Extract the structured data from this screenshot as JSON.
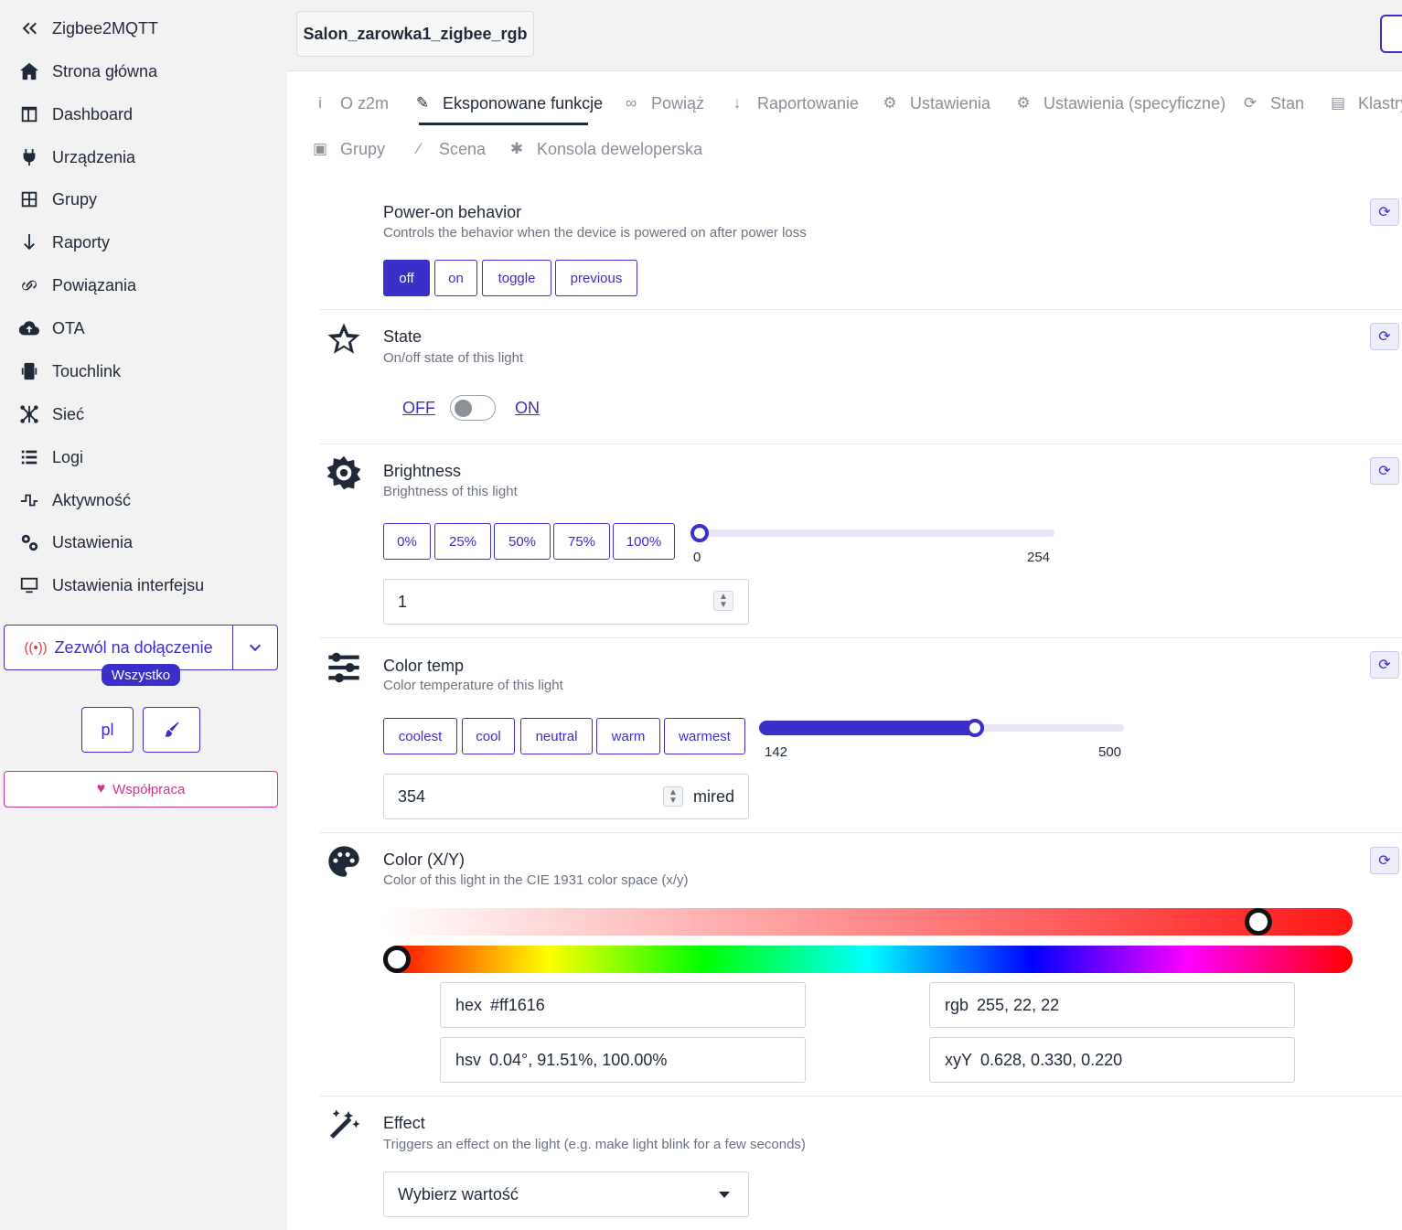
{
  "sidebar": {
    "brand": "Zigbee2MQTT",
    "items": [
      {
        "label": "Strona główna",
        "icon": "home-icon"
      },
      {
        "label": "Dashboard",
        "icon": "dashboard-icon"
      },
      {
        "label": "Urządzenia",
        "icon": "plug-icon"
      },
      {
        "label": "Grupy",
        "icon": "grid-icon"
      },
      {
        "label": "Raporty",
        "icon": "arrow-down-icon"
      },
      {
        "label": "Powiązania",
        "icon": "link-icon"
      },
      {
        "label": "OTA",
        "icon": "cloud-upload-icon"
      },
      {
        "label": "Touchlink",
        "icon": "mobile-signal-icon"
      },
      {
        "label": "Sieć",
        "icon": "network-icon"
      },
      {
        "label": "Logi",
        "icon": "list-icon"
      },
      {
        "label": "Aktywność",
        "icon": "pulse-icon"
      },
      {
        "label": "Ustawienia",
        "icon": "gears-icon"
      },
      {
        "label": "Ustawienia interfejsu",
        "icon": "monitor-icon"
      }
    ],
    "permit_join": {
      "label": "Zezwól na dołączenie",
      "badge": "Wszystko"
    },
    "language": "pl",
    "cooperation": "Współpraca"
  },
  "header": {
    "device_name": "Salon_zarowka1_zigbee_rgb"
  },
  "tabs": [
    {
      "label": "O z2m",
      "icon": "info-icon",
      "active": false
    },
    {
      "label": "Eksponowane funkcje",
      "icon": "pencil-icon",
      "active": true
    },
    {
      "label": "Powiąż",
      "icon": "link-icon",
      "active": false
    },
    {
      "label": "Raportowanie",
      "icon": "arrow-down-icon",
      "active": false
    },
    {
      "label": "Ustawienia",
      "icon": "gears-icon",
      "active": false
    },
    {
      "label": "Ustawienia (specyficzne)",
      "icon": "gear-icon",
      "active": false
    },
    {
      "label": "Stan",
      "icon": "sync-icon",
      "active": false
    },
    {
      "label": "Klastry",
      "icon": "clipboard-icon",
      "active": false
    },
    {
      "label": "Grupy",
      "icon": "object-group-icon",
      "active": false
    },
    {
      "label": "Scena",
      "icon": "magic-wand-icon",
      "active": false
    },
    {
      "label": "Konsola deweloperska",
      "icon": "bug-icon",
      "active": false
    }
  ],
  "features": {
    "power_on": {
      "title": "Power-on behavior",
      "description": "Controls the behavior when the device is powered on after power loss",
      "options": [
        "off",
        "on",
        "toggle",
        "previous"
      ],
      "selected": "off"
    },
    "state": {
      "title": "State",
      "description": "On/off state of this light",
      "off_label": "OFF",
      "on_label": "ON",
      "value": "OFF"
    },
    "brightness": {
      "title": "Brightness",
      "description": "Brightness of this light",
      "presets": [
        "0%",
        "25%",
        "50%",
        "75%",
        "100%"
      ],
      "min": "0",
      "max": "254",
      "value": "1",
      "fraction": 0.004
    },
    "color_temp": {
      "title": "Color temp",
      "description": "Color temperature of this light",
      "presets": [
        "coolest",
        "cool",
        "neutral",
        "warm",
        "warmest"
      ],
      "min": "142",
      "max": "500",
      "value": "354",
      "unit": "mired",
      "fraction": 0.592
    },
    "color": {
      "title": "Color (X/Y)",
      "description": "Color of this light in the CIE 1931 color space (x/y)",
      "hex_key": "hex",
      "hex": "#ff1616",
      "rgb_key": "rgb",
      "rgb": "255, 22, 22",
      "hsv_key": "hsv",
      "hsv": "0.04°, 91.51%, 100.00%",
      "xyy_key": "xyY",
      "xyy": "0.628, 0.330, 0.220",
      "saturation_fraction": 0.915,
      "hue_fraction": 0.0
    },
    "effect": {
      "title": "Effect",
      "description": "Triggers an effect on the light (e.g. make light blink for a few seconds)",
      "placeholder": "Wybierz wartość"
    }
  }
}
